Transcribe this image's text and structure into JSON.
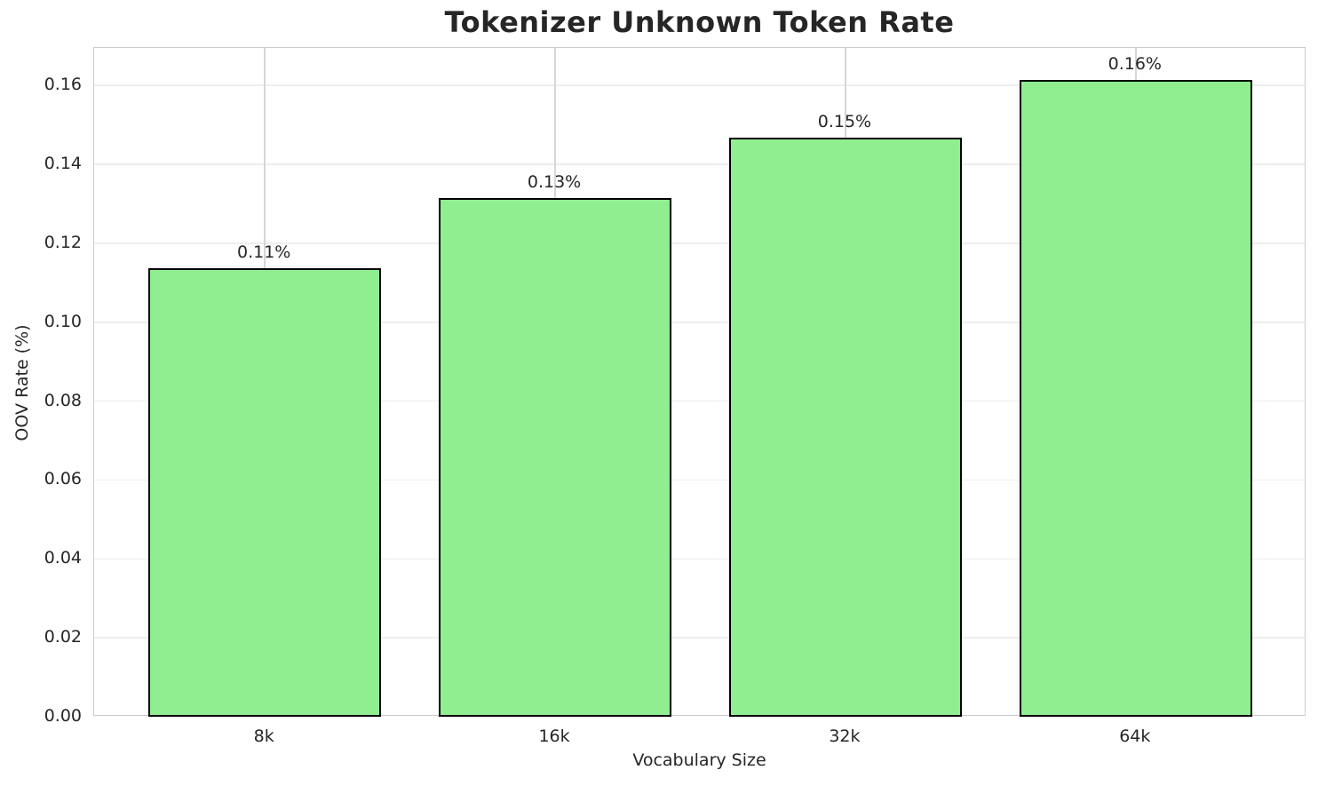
{
  "chart_data": {
    "type": "bar",
    "title": "Tokenizer Unknown Token Rate",
    "xlabel": "Vocabulary Size",
    "ylabel": "OOV Rate (%)",
    "categories": [
      "8k",
      "16k",
      "32k",
      "64k"
    ],
    "values": [
      0.1136,
      0.1314,
      0.1467,
      0.1613
    ],
    "bar_labels": [
      "0.11%",
      "0.13%",
      "0.15%",
      "0.16%"
    ],
    "yticks": [
      0.0,
      0.02,
      0.04,
      0.06,
      0.08,
      0.1,
      0.12,
      0.14,
      0.16
    ],
    "ytick_labels": [
      "0.00",
      "0.02",
      "0.04",
      "0.06",
      "0.08",
      "0.10",
      "0.12",
      "0.14",
      "0.16"
    ],
    "ylim": [
      0,
      0.1695
    ],
    "xlim": [
      -0.588,
      3.588
    ],
    "bar_width": 0.8,
    "grid": true,
    "legend": false,
    "bar_color": "#90EE90",
    "bar_edge_color": "#000000",
    "text_color": "#262626"
  }
}
